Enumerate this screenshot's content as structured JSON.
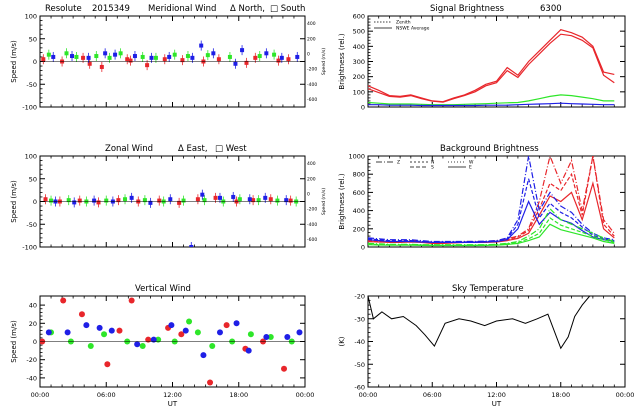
{
  "figure": {
    "x_axis_label": "UT",
    "x_tick_labels": [
      "00:00",
      "06:00",
      "12:00",
      "18:00",
      "00:00"
    ],
    "x_range_hours": [
      0,
      24
    ]
  },
  "colors": {
    "red": "#e8262b",
    "green": "#2ee629",
    "blue": "#1f1fe6",
    "black": "#000000"
  },
  "chart_data": [
    {
      "id": "meridional",
      "type": "scatter",
      "title_parts": {
        "station": "Resolute",
        "date": "2015349",
        "label": "Meridional Wind",
        "north": "Δ North,",
        "south": "□ South"
      },
      "ylabel": "Speed (m/s)",
      "ylim": [
        -100,
        100
      ],
      "yticks": [
        -100,
        -50,
        0,
        50,
        100
      ],
      "right_axis": {
        "label": "Speed (m/s)",
        "ticks": [
          "-600",
          "-400",
          "-200",
          "0",
          "200",
          "400"
        ]
      },
      "series": [
        {
          "name": "red",
          "color": "red",
          "x": [
            0.3,
            2.0,
            3.9,
            4.5,
            5.6,
            7.9,
            8.2,
            9.7,
            11.3,
            12.9,
            14.8,
            16.2,
            18.7,
            19.5,
            21.6,
            22.5
          ],
          "y": [
            5,
            0,
            8,
            -5,
            -12,
            5,
            2,
            -8,
            5,
            3,
            0,
            5,
            -3,
            8,
            2,
            5
          ]
        },
        {
          "name": "green",
          "color": "green",
          "x": [
            0.8,
            2.4,
            3.3,
            5.1,
            6.3,
            7.3,
            9.3,
            10.5,
            12.2,
            13.4,
            15.2,
            17.2,
            19.9,
            21.2
          ],
          "y": [
            15,
            18,
            10,
            12,
            8,
            18,
            10,
            8,
            15,
            12,
            14,
            10,
            12,
            15
          ]
        },
        {
          "name": "blue",
          "color": "blue",
          "x": [
            1.2,
            2.9,
            4.4,
            5.9,
            6.8,
            8.6,
            10.1,
            11.7,
            13.8,
            14.6,
            15.7,
            17.7,
            18.3,
            20.5,
            21.9,
            23.3
          ],
          "y": [
            10,
            12,
            8,
            18,
            15,
            12,
            8,
            10,
            8,
            35,
            18,
            -5,
            25,
            18,
            8,
            10
          ]
        }
      ]
    },
    {
      "id": "signal",
      "type": "line",
      "title": "Signal Brightness",
      "wavelength": "6300",
      "ylabel": "Brightness (rel.)",
      "ylim": [
        0,
        600
      ],
      "yticks": [
        0,
        100,
        200,
        300,
        400,
        500,
        600
      ],
      "legend": [
        "Zenith",
        "NSWE Average"
      ],
      "x": [
        0,
        1,
        2,
        3,
        4,
        5,
        6,
        7,
        8,
        9,
        10,
        11,
        12,
        13,
        14,
        15,
        16,
        17,
        18,
        19,
        20,
        21,
        22,
        23
      ],
      "series": [
        {
          "name": "red-zenith",
          "color": "red",
          "values": [
            140,
            110,
            75,
            70,
            80,
            60,
            40,
            35,
            60,
            80,
            110,
            150,
            170,
            260,
            210,
            300,
            370,
            440,
            510,
            490,
            460,
            400,
            230,
            215
          ]
        },
        {
          "name": "red-average",
          "color": "red",
          "values": [
            120,
            95,
            70,
            65,
            75,
            55,
            38,
            32,
            55,
            75,
            100,
            140,
            160,
            240,
            195,
            280,
            350,
            420,
            480,
            470,
            440,
            390,
            210,
            160
          ]
        },
        {
          "name": "green",
          "color": "green",
          "values": [
            30,
            25,
            20,
            20,
            20,
            18,
            15,
            15,
            15,
            18,
            20,
            22,
            25,
            28,
            30,
            40,
            55,
            70,
            80,
            75,
            65,
            55,
            40,
            40
          ]
        },
        {
          "name": "blue",
          "color": "blue",
          "values": [
            15,
            15,
            12,
            12,
            12,
            10,
            10,
            10,
            10,
            10,
            10,
            12,
            12,
            12,
            15,
            18,
            20,
            22,
            25,
            22,
            20,
            18,
            15,
            15
          ]
        }
      ]
    },
    {
      "id": "zonal",
      "type": "scatter",
      "title_parts": {
        "label": "Zonal Wind",
        "east": "Δ East,",
        "west": "□ West"
      },
      "ylabel": "Speed (m/s)",
      "ylim": [
        -100,
        100
      ],
      "yticks": [
        -100,
        -50,
        0,
        50,
        100
      ],
      "right_axis": {
        "label": "Speed (m/s)",
        "ticks": [
          "-600",
          "-400",
          "-200",
          "0",
          "200",
          "400"
        ]
      },
      "series": [
        {
          "name": "red",
          "color": "red",
          "x": [
            0.5,
            1.8,
            3.6,
            5.3,
            7.1,
            8.9,
            10.8,
            12.6,
            14.3,
            15.9,
            17.8,
            19.3,
            20.9,
            22.7
          ],
          "y": [
            5,
            0,
            2,
            -2,
            3,
            0,
            2,
            -3,
            5,
            8,
            0,
            3,
            5,
            2
          ]
        },
        {
          "name": "green",
          "color": "green",
          "x": [
            1.0,
            2.6,
            4.2,
            6.0,
            7.7,
            9.5,
            11.2,
            13.0,
            14.9,
            16.6,
            18.1,
            19.8,
            21.5,
            23.2
          ],
          "y": [
            2,
            3,
            0,
            2,
            5,
            3,
            0,
            2,
            3,
            0,
            5,
            3,
            2,
            0
          ]
        },
        {
          "name": "blue",
          "color": "blue",
          "x": [
            1.4,
            3.1,
            4.9,
            6.6,
            8.3,
            10.0,
            11.8,
            13.7,
            14.7,
            16.3,
            17.5,
            19.0,
            20.4,
            22.3
          ],
          "y": [
            0,
            -2,
            2,
            0,
            8,
            -3,
            5,
            -100,
            15,
            8,
            10,
            5,
            8,
            3
          ]
        }
      ]
    },
    {
      "id": "background",
      "type": "line",
      "title": "Background Brightness",
      "ylabel": "Brightness (rel.)",
      "ylim": [
        0,
        1000
      ],
      "yticks": [
        0,
        200,
        400,
        600,
        800,
        1000
      ],
      "legend": [
        "Z",
        "N",
        "S",
        "W",
        "E"
      ],
      "x": [
        0,
        1,
        2,
        3,
        4,
        5,
        6,
        7,
        8,
        9,
        10,
        11,
        12,
        13,
        14,
        15,
        16,
        17,
        18,
        19,
        20,
        21,
        22,
        23
      ],
      "series": [
        {
          "name": "red-a",
          "color": "red",
          "values": [
            80,
            70,
            60,
            60,
            70,
            60,
            50,
            50,
            55,
            60,
            60,
            60,
            70,
            90,
            120,
            200,
            500,
            1000,
            700,
            950,
            400,
            1000,
            300,
            150
          ]
        },
        {
          "name": "red-b",
          "color": "red",
          "values": [
            70,
            60,
            55,
            55,
            60,
            55,
            45,
            45,
            50,
            55,
            55,
            55,
            60,
            80,
            110,
            180,
            420,
            700,
            620,
            800,
            350,
            1000,
            250,
            120
          ]
        },
        {
          "name": "red-c",
          "color": "red",
          "values": [
            60,
            55,
            50,
            50,
            55,
            50,
            40,
            40,
            45,
            50,
            50,
            50,
            55,
            70,
            95,
            150,
            350,
            560,
            500,
            600,
            300,
            700,
            200,
            100
          ]
        },
        {
          "name": "blue-a",
          "color": "blue",
          "values": [
            100,
            90,
            80,
            80,
            80,
            70,
            60,
            60,
            60,
            60,
            60,
            65,
            70,
            100,
            300,
            1000,
            400,
            600,
            450,
            380,
            250,
            150,
            100,
            80
          ]
        },
        {
          "name": "blue-b",
          "color": "blue",
          "values": [
            90,
            80,
            70,
            70,
            70,
            60,
            55,
            55,
            55,
            55,
            55,
            60,
            65,
            90,
            250,
            750,
            320,
            480,
            380,
            320,
            220,
            130,
            90,
            70
          ]
        },
        {
          "name": "blue-c",
          "color": "blue",
          "values": [
            80,
            70,
            60,
            60,
            60,
            55,
            50,
            50,
            50,
            50,
            50,
            55,
            60,
            80,
            200,
            500,
            250,
            380,
            300,
            260,
            180,
            110,
            80,
            60
          ]
        },
        {
          "name": "green-a",
          "color": "green",
          "values": [
            40,
            35,
            30,
            30,
            30,
            25,
            25,
            25,
            25,
            25,
            25,
            25,
            30,
            40,
            60,
            120,
            200,
            420,
            300,
            250,
            200,
            150,
            100,
            60
          ]
        },
        {
          "name": "green-b",
          "color": "green",
          "values": [
            30,
            28,
            25,
            25,
            25,
            22,
            20,
            20,
            20,
            20,
            20,
            22,
            25,
            35,
            50,
            90,
            150,
            320,
            240,
            200,
            160,
            120,
            80,
            50
          ]
        },
        {
          "name": "green-c",
          "color": "green",
          "values": [
            25,
            22,
            20,
            20,
            20,
            18,
            16,
            16,
            16,
            16,
            16,
            18,
            20,
            28,
            40,
            70,
            110,
            250,
            190,
            160,
            130,
            100,
            60,
            40
          ]
        }
      ]
    },
    {
      "id": "vertical",
      "type": "scatter",
      "title": "Vertical Wind",
      "ylabel": "Speed (m/s)",
      "ylim": [
        -50,
        50
      ],
      "yticks": [
        -40,
        -20,
        0,
        20,
        40
      ],
      "series": [
        {
          "name": "red",
          "color": "red",
          "x": [
            0.2,
            2.1,
            3.8,
            6.1,
            7.2,
            8.3,
            9.8,
            11.6,
            12.8,
            15.4,
            16.9,
            18.6,
            20.2,
            22.1
          ],
          "y": [
            0,
            45,
            30,
            -25,
            12,
            45,
            2,
            15,
            8,
            -45,
            18,
            -8,
            0,
            -30
          ]
        },
        {
          "name": "green",
          "color": "green",
          "x": [
            1.0,
            2.8,
            4.6,
            5.8,
            7.9,
            9.3,
            10.7,
            12.2,
            13.5,
            14.3,
            15.6,
            17.4,
            19.1,
            20.9,
            22.8
          ],
          "y": [
            10,
            0,
            -5,
            8,
            0,
            -5,
            2,
            0,
            22,
            10,
            -5,
            0,
            8,
            5,
            0
          ]
        },
        {
          "name": "blue",
          "color": "blue",
          "x": [
            0.8,
            2.5,
            4.2,
            5.4,
            6.5,
            8.8,
            10.3,
            11.9,
            13.2,
            14.8,
            16.3,
            17.8,
            18.9,
            20.5,
            22.4,
            23.5
          ],
          "y": [
            10,
            10,
            18,
            15,
            12,
            -3,
            2,
            18,
            12,
            -15,
            10,
            20,
            -10,
            5,
            5,
            10
          ]
        }
      ]
    },
    {
      "id": "sky",
      "type": "line",
      "title": "Sky Temperature",
      "ylabel": "(K)",
      "ylim": [
        -60,
        -20
      ],
      "yticks": [
        -60,
        -50,
        -40,
        -30,
        -20
      ],
      "x": [
        0,
        0.5,
        1.3,
        2.2,
        3.3,
        4.5,
        5.3,
        6.2,
        7.2,
        8.5,
        9.6,
        10.9,
        12.0,
        13.5,
        14.7,
        15.8,
        16.8,
        18.0,
        18.7,
        19.3,
        20.0,
        20.7
      ],
      "series": [
        {
          "name": "sky-temperature",
          "color": "black",
          "values": [
            -20,
            -30,
            -27,
            -30,
            -29,
            -33,
            -37,
            -42,
            -32,
            -30,
            -31,
            -33,
            -31,
            -30,
            -32,
            -30,
            -28,
            -43,
            -38,
            -29,
            -24,
            -20
          ]
        }
      ]
    }
  ]
}
